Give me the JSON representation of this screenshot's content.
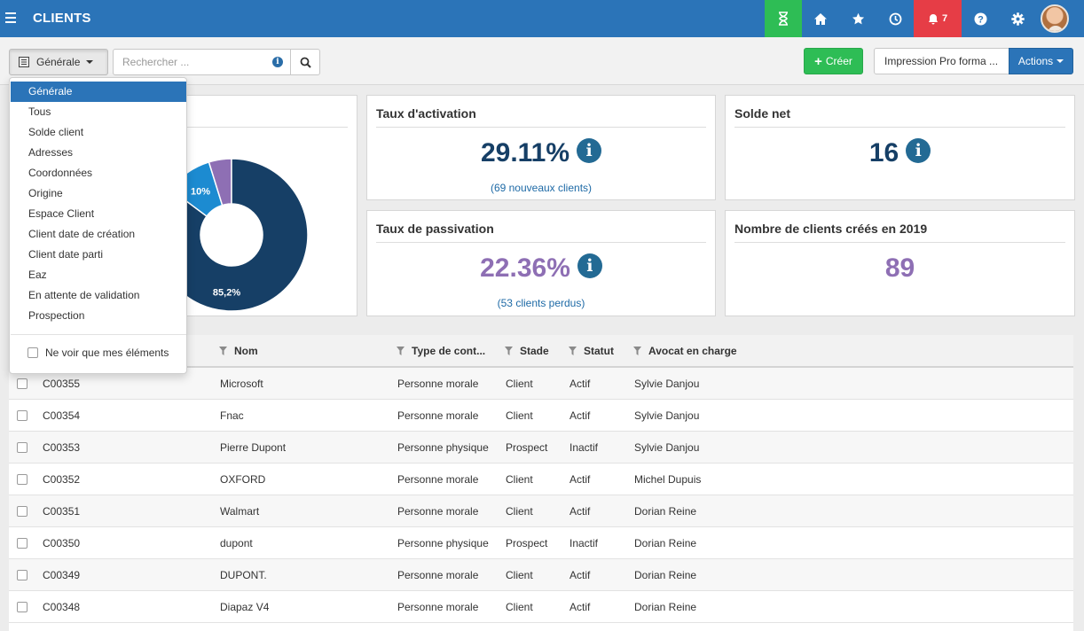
{
  "header": {
    "title": "CLIENTS",
    "notifications_count": "7",
    "colors": {
      "bar": "#2b74b8",
      "green": "#2ebd55",
      "red": "#e63d46"
    }
  },
  "toolbar": {
    "view_label": "Générale",
    "search_placeholder": "Rechercher ...",
    "create_label": "Créer",
    "print_label": "Impression Pro forma  ...",
    "actions_label": "Actions"
  },
  "dropdown": {
    "items": [
      "Générale",
      "Tous",
      "Solde client",
      "Adresses",
      "Coordonnées",
      "Origine",
      "Espace Client",
      "Client date de création",
      "Client date parti",
      "Eaz",
      "En attente de validation",
      "Prospection"
    ],
    "only_mine_label": "Ne voir que mes éléments"
  },
  "cards": {
    "activation": {
      "title": "Taux d'activation",
      "value": "29.11%",
      "sub": "(69 nouveaux clients)"
    },
    "solde": {
      "title": "Solde net",
      "value": "16"
    },
    "passivation": {
      "title": "Taux de passivation",
      "value": "22.36%",
      "sub": "(53 clients perdus)"
    },
    "crees": {
      "title": "Nombre de clients créés en 2019",
      "value": "89"
    }
  },
  "chart_data": {
    "type": "pie",
    "donut": true,
    "labels": [
      "85,2%",
      "10%"
    ],
    "slices": [
      {
        "value": 85.2,
        "color": "#163f66",
        "label": "85,2%"
      },
      {
        "value": 10,
        "color": "#1c8bd1",
        "label": "10%"
      },
      {
        "value": 4.8,
        "color": "#8e6fb4",
        "label": ""
      }
    ]
  },
  "table": {
    "headers": {
      "nom": "Nom",
      "type": "Type de cont...",
      "stade": "Stade",
      "statut": "Statut",
      "avocat": "Avocat en charge"
    },
    "rows": [
      [
        "C00355",
        "Microsoft",
        "Personne morale",
        "Client",
        "Actif",
        "Sylvie Danjou"
      ],
      [
        "C00354",
        "Fnac",
        "Personne morale",
        "Client",
        "Actif",
        "Sylvie Danjou"
      ],
      [
        "C00353",
        "Pierre Dupont",
        "Personne physique",
        "Prospect",
        "Inactif",
        "Sylvie Danjou"
      ],
      [
        "C00352",
        "OXFORD",
        "Personne morale",
        "Client",
        "Actif",
        "Michel Dupuis"
      ],
      [
        "C00351",
        "Walmart",
        "Personne morale",
        "Client",
        "Actif",
        "Dorian Reine"
      ],
      [
        "C00350",
        "dupont",
        "Personne physique",
        "Prospect",
        "Inactif",
        "Dorian Reine"
      ],
      [
        "C00349",
        "DUPONT.",
        "Personne morale",
        "Client",
        "Actif",
        "Dorian Reine"
      ],
      [
        "C00348",
        "Diapaz V4",
        "Personne morale",
        "Client",
        "Actif",
        "Dorian Reine"
      ]
    ]
  }
}
